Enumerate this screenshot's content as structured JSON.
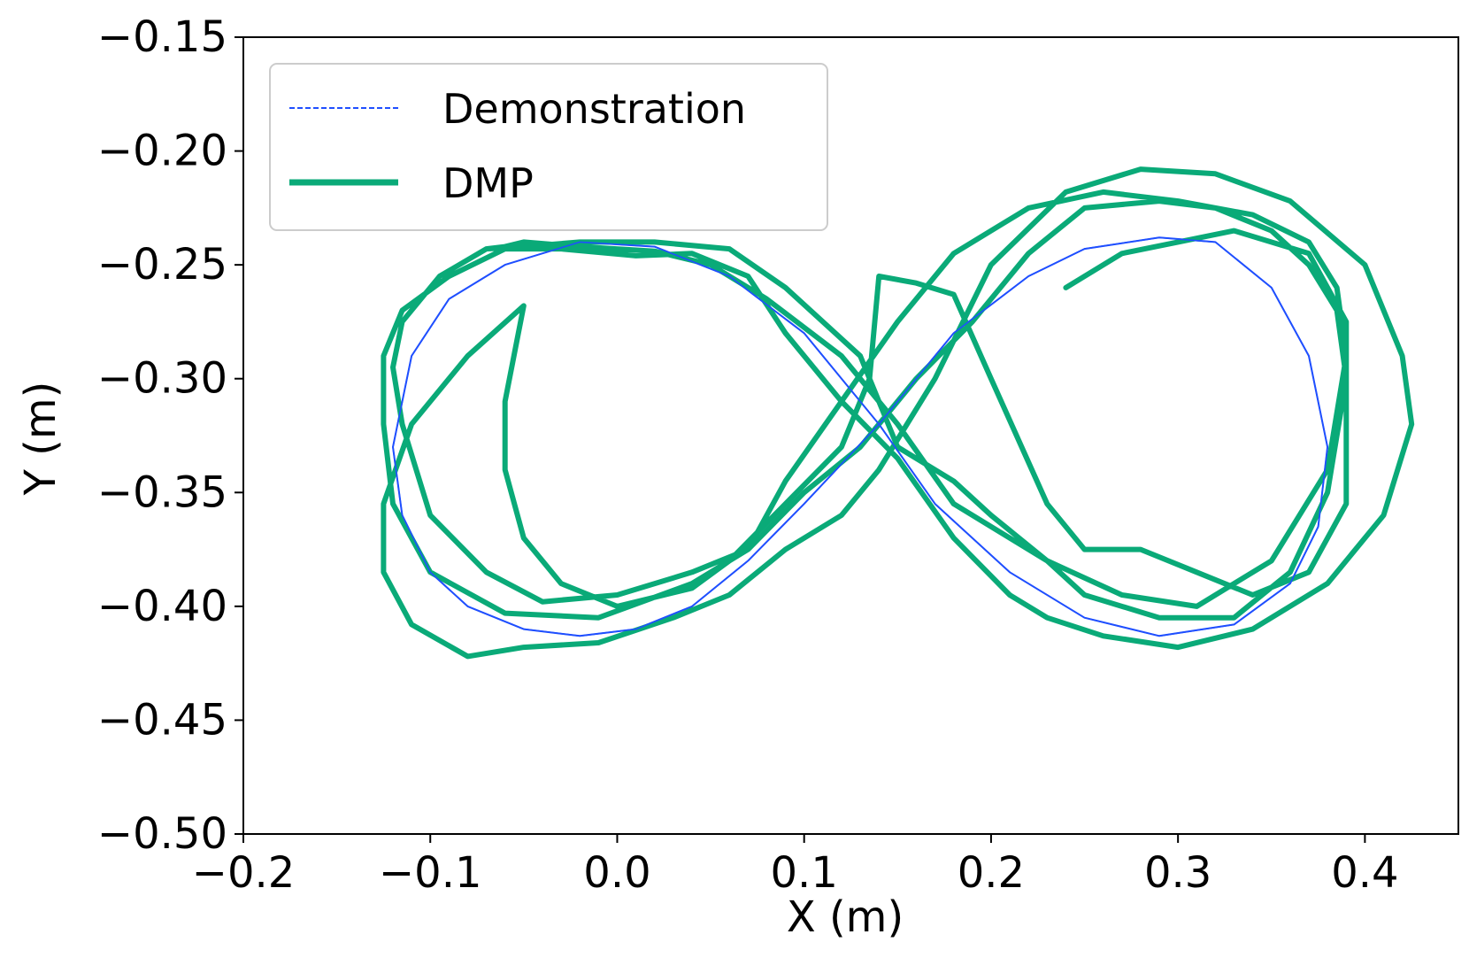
{
  "chart_data": {
    "type": "line",
    "title": "",
    "xlabel": "X (m)",
    "ylabel": "Y (m)",
    "xlim": [
      -0.2,
      0.45
    ],
    "ylim": [
      -0.5,
      -0.15
    ],
    "xticks": [
      -0.2,
      -0.1,
      0.0,
      0.1,
      0.2,
      0.3,
      0.4
    ],
    "xtick_labels": [
      "−0.2",
      "−0.1",
      "0.0",
      "0.1",
      "0.2",
      "0.3",
      "0.4"
    ],
    "yticks": [
      -0.15,
      -0.2,
      -0.25,
      -0.3,
      -0.35,
      -0.4,
      -0.45,
      -0.5
    ],
    "ytick_labels": [
      "−0.15",
      "−0.20",
      "−0.25",
      "−0.30",
      "−0.35",
      "−0.40",
      "−0.45",
      "−0.50"
    ],
    "grid": false,
    "legend_position": "top-left",
    "series": [
      {
        "name": "Demonstration",
        "color": "#1f4fff",
        "style": "dashed",
        "x": [
          0.14,
          0.1,
          0.06,
          0.02,
          -0.02,
          -0.06,
          -0.09,
          -0.11,
          -0.12,
          -0.115,
          -0.1,
          -0.08,
          -0.05,
          -0.02,
          0.01,
          0.04,
          0.07,
          0.1,
          0.14,
          0.18,
          0.22,
          0.25,
          0.29,
          0.32,
          0.35,
          0.37,
          0.38,
          0.375,
          0.36,
          0.33,
          0.29,
          0.25,
          0.21,
          0.17,
          0.14
        ],
        "y": [
          -0.32,
          -0.28,
          -0.255,
          -0.242,
          -0.24,
          -0.25,
          -0.265,
          -0.29,
          -0.33,
          -0.36,
          -0.385,
          -0.4,
          -0.41,
          -0.413,
          -0.41,
          -0.4,
          -0.38,
          -0.355,
          -0.32,
          -0.28,
          -0.255,
          -0.243,
          -0.238,
          -0.24,
          -0.26,
          -0.29,
          -0.33,
          -0.365,
          -0.39,
          -0.408,
          -0.413,
          -0.405,
          -0.385,
          -0.355,
          -0.32
        ]
      },
      {
        "name": "DMP",
        "color": "#0aaa78",
        "style": "solid",
        "x": [
          -0.07,
          -0.05,
          -0.02,
          0.02,
          0.06,
          0.09,
          0.13,
          0.15,
          0.18,
          0.2,
          0.23,
          0.25,
          0.29,
          0.33,
          0.36,
          0.38,
          0.39,
          0.385,
          0.37,
          0.35,
          0.32,
          0.29,
          0.25,
          0.22,
          0.19,
          0.16,
          0.13,
          0.1,
          0.07,
          0.04,
          0.0,
          -0.04,
          -0.07,
          -0.1,
          -0.115,
          -0.12,
          -0.115,
          -0.095,
          -0.07,
          -0.06,
          -0.05,
          -0.02,
          0.02,
          0.05,
          0.08,
          0.12,
          0.15,
          0.18,
          0.23,
          0.27,
          0.31,
          0.35,
          0.38,
          0.39,
          0.385,
          0.37,
          0.34,
          0.3,
          0.26,
          0.22,
          0.18,
          0.15,
          0.12,
          0.09,
          0.07,
          0.04,
          -0.01,
          -0.06,
          -0.1,
          -0.12,
          -0.125,
          -0.125,
          -0.115,
          -0.09,
          -0.06,
          -0.03,
          0.01,
          0.04,
          0.07,
          0.09,
          0.12,
          0.15,
          0.18,
          0.21,
          0.23,
          0.26,
          0.3,
          0.34,
          0.38,
          0.41,
          0.425,
          0.42,
          0.4,
          0.36,
          0.32,
          0.28,
          0.24,
          0.2,
          0.17,
          0.14,
          0.12,
          0.09,
          0.06,
          0.03,
          -0.01,
          -0.05,
          -0.08,
          -0.11,
          -0.125,
          -0.125,
          -0.11,
          -0.08,
          -0.05,
          -0.06,
          -0.06,
          -0.05,
          -0.03,
          0.0,
          0.04,
          0.06,
          0.09,
          0.12,
          0.135,
          0.14,
          0.16,
          0.18,
          0.2,
          0.23,
          0.25,
          0.28,
          0.31,
          0.34,
          0.37,
          0.39,
          0.39,
          0.37,
          0.33,
          0.3,
          0.27,
          0.24
        ],
        "y": [
          -0.243,
          -0.242,
          -0.24,
          -0.24,
          -0.243,
          -0.26,
          -0.29,
          -0.33,
          -0.345,
          -0.36,
          -0.38,
          -0.395,
          -0.405,
          -0.405,
          -0.385,
          -0.35,
          -0.3,
          -0.27,
          -0.25,
          -0.235,
          -0.225,
          -0.222,
          -0.225,
          -0.245,
          -0.275,
          -0.3,
          -0.33,
          -0.35,
          -0.375,
          -0.385,
          -0.395,
          -0.398,
          -0.385,
          -0.36,
          -0.32,
          -0.295,
          -0.275,
          -0.255,
          -0.243,
          -0.242,
          -0.24,
          -0.242,
          -0.244,
          -0.25,
          -0.265,
          -0.29,
          -0.32,
          -0.355,
          -0.38,
          -0.395,
          -0.4,
          -0.38,
          -0.34,
          -0.29,
          -0.26,
          -0.24,
          -0.228,
          -0.222,
          -0.218,
          -0.225,
          -0.245,
          -0.275,
          -0.31,
          -0.345,
          -0.375,
          -0.39,
          -0.405,
          -0.403,
          -0.385,
          -0.355,
          -0.32,
          -0.29,
          -0.27,
          -0.255,
          -0.243,
          -0.243,
          -0.246,
          -0.245,
          -0.255,
          -0.28,
          -0.31,
          -0.335,
          -0.37,
          -0.395,
          -0.405,
          -0.413,
          -0.418,
          -0.41,
          -0.39,
          -0.36,
          -0.32,
          -0.29,
          -0.25,
          -0.222,
          -0.21,
          -0.208,
          -0.218,
          -0.25,
          -0.3,
          -0.34,
          -0.36,
          -0.375,
          -0.395,
          -0.405,
          -0.416,
          -0.418,
          -0.422,
          -0.408,
          -0.385,
          -0.355,
          -0.32,
          -0.29,
          -0.268,
          -0.31,
          -0.34,
          -0.37,
          -0.39,
          -0.4,
          -0.392,
          -0.38,
          -0.355,
          -0.33,
          -0.3,
          -0.255,
          -0.258,
          -0.263,
          -0.3,
          -0.355,
          -0.375,
          -0.375,
          -0.385,
          -0.395,
          -0.385,
          -0.355,
          -0.275,
          -0.245,
          -0.235,
          -0.24,
          -0.245,
          -0.26
        ]
      }
    ]
  },
  "legend": {
    "items": [
      {
        "label": "Demonstration",
        "color": "#1f4fff",
        "style": "dashed"
      },
      {
        "label": "DMP",
        "color": "#0aaa78",
        "style": "solid"
      }
    ]
  }
}
